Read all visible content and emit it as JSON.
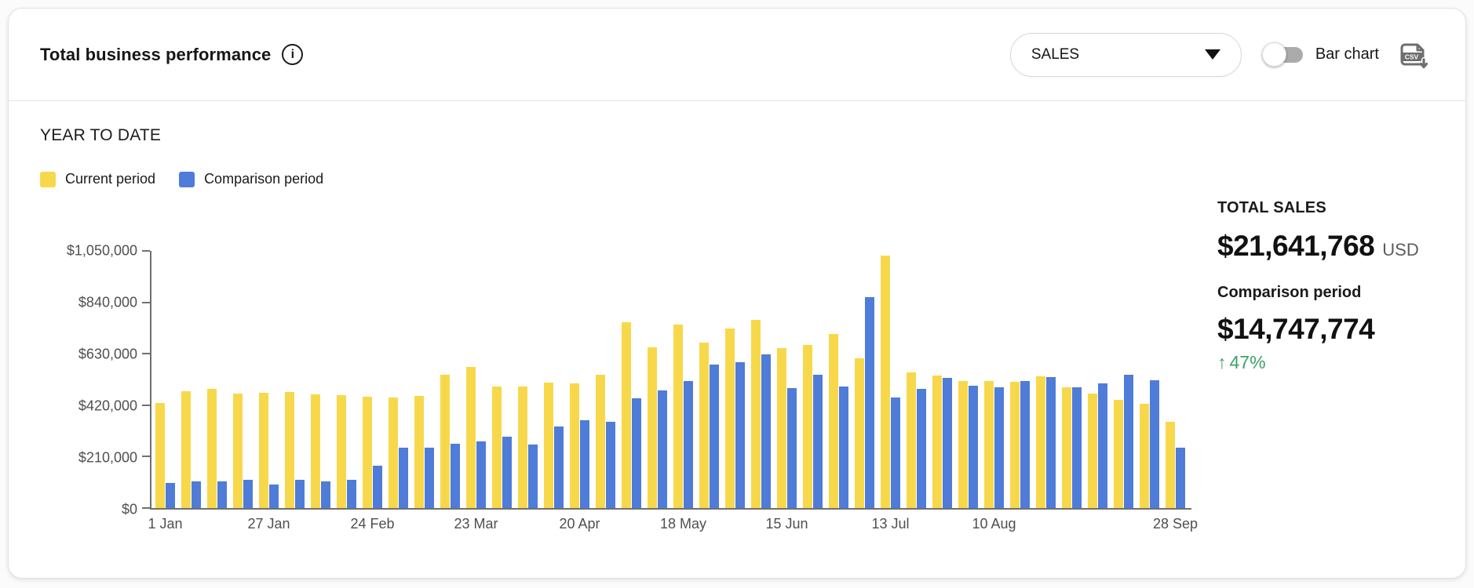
{
  "header": {
    "title": "Total business performance",
    "metric_dropdown": {
      "value": "SALES"
    },
    "toggle_label": "Bar chart"
  },
  "subtitle": "YEAR TO DATE",
  "legend": [
    {
      "label": "Current period",
      "color": "#F8D84B"
    },
    {
      "label": "Comparison period",
      "color": "#4E7CD8"
    }
  ],
  "summary": {
    "total_label": "TOTAL SALES",
    "total_value": "$21,641,768",
    "currency": "USD",
    "comparison_label": "Comparison period",
    "comparison_value": "$14,747,774",
    "change_arrow": "↑",
    "change_percent": "47%",
    "change_color": "#3ea266"
  },
  "chart_data": {
    "type": "bar",
    "group_count": 40,
    "ylim": [
      0,
      1050000
    ],
    "grid": false,
    "legend_position": "top-left",
    "y_ticks": [
      {
        "value": 0,
        "label": "$0"
      },
      {
        "value": 210000,
        "label": "$210,000"
      },
      {
        "value": 420000,
        "label": "$420,000"
      },
      {
        "value": 630000,
        "label": "$630,000"
      },
      {
        "value": 840000,
        "label": "$840,000"
      },
      {
        "value": 1050000,
        "label": "$1,050,000"
      }
    ],
    "x_tick_labels": [
      {
        "index": 0,
        "label": "1 Jan"
      },
      {
        "index": 4,
        "label": "27 Jan"
      },
      {
        "index": 8,
        "label": "24 Feb"
      },
      {
        "index": 12,
        "label": "23 Mar"
      },
      {
        "index": 16,
        "label": "20 Apr"
      },
      {
        "index": 20,
        "label": "18 May"
      },
      {
        "index": 24,
        "label": "15 Jun"
      },
      {
        "index": 28,
        "label": "13 Jul"
      },
      {
        "index": 32,
        "label": "10 Aug"
      },
      {
        "index": 39,
        "label": "28 Sep"
      }
    ],
    "series": [
      {
        "name": "Current period",
        "color": "#F8D84B",
        "values": [
          430000,
          478000,
          487000,
          469000,
          471000,
          473000,
          464000,
          460000,
          455000,
          450000,
          459000,
          543000,
          576000,
          496000,
          495000,
          511000,
          509000,
          543000,
          760000,
          656000,
          748000,
          675000,
          732000,
          768000,
          653000,
          667000,
          710000,
          610000,
          1030000,
          554000,
          541000,
          520000,
          520000,
          516000,
          538000,
          492000,
          468000,
          441000,
          425000,
          352000
        ]
      },
      {
        "name": "Comparison period",
        "color": "#4E7CD8",
        "values": [
          103000,
          110000,
          108000,
          114000,
          97000,
          114000,
          108000,
          116000,
          172000,
          247000,
          245000,
          263000,
          272000,
          290000,
          259000,
          333000,
          358000,
          352000,
          449000,
          481000,
          520000,
          586000,
          595000,
          627000,
          489000,
          543000,
          495000,
          860000,
          452000,
          487000,
          530000,
          498000,
          492000,
          520000,
          535000,
          492000,
          509000,
          543000,
          522000,
          245000
        ]
      }
    ]
  }
}
